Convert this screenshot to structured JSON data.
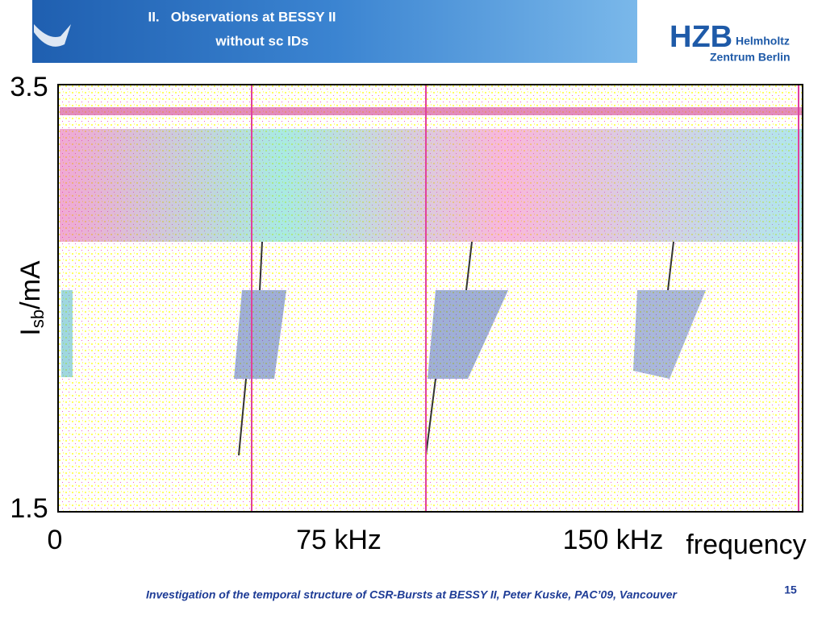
{
  "header": {
    "title_lines": [
      "II.   Observations at BESSY II",
      "without sc IDs"
    ],
    "logo": {
      "mark": "HZB",
      "line1": "Helmholtz",
      "line2": "Zentrum Berlin"
    }
  },
  "figure": {
    "y_label": {
      "main": "I",
      "sub": "sb",
      "unit": "/mA"
    },
    "y_top": "3.5",
    "y_bottom": "1.5",
    "x_labels": [
      "0",
      "75 kHz",
      "150 kHz"
    ],
    "x_title": "frequency"
  },
  "footer": {
    "text": "Investigation of the temporal structure of CSR-Bursts at BESSY II, Peter Kuske, PAC’09, Vancouver",
    "page": "15"
  }
}
